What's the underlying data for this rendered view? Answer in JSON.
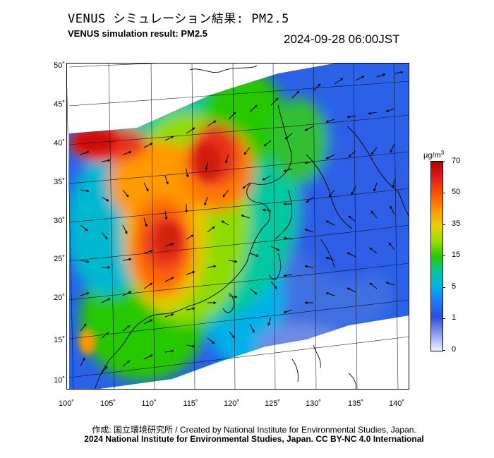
{
  "header": {
    "title_jp": "VENUS シミュレーション結果: PM2.5",
    "title_en": "VENUS simulation result: PM2.5",
    "timestamp": "2024-09-28 06:00JST"
  },
  "map": {
    "lat_ticks": [
      "50˚",
      "45˚",
      "40˚",
      "35˚",
      "30˚",
      "25˚",
      "20˚",
      "15˚",
      "10˚"
    ],
    "lon_ticks": [
      "100˚",
      "105˚",
      "110˚",
      "115˚",
      "120˚",
      "125˚",
      "130˚",
      "135˚",
      "140˚"
    ],
    "lon_range": [
      100,
      142
    ],
    "lat_range": [
      9,
      51
    ],
    "colors": {
      "background": "#ffffff",
      "coastline": "#000000",
      "wind_arrow": "#000000"
    }
  },
  "colorbar": {
    "unit": "μg/m",
    "unit_sup": "3",
    "labels": [
      "70",
      "50",
      "35",
      "15",
      "5",
      "1",
      "0"
    ],
    "stops": [
      "#b30000",
      "#ff5a00",
      "#ff9a00",
      "#9adf00",
      "#28c800",
      "#00b4e6",
      "#1e78ff",
      "#7e94ea",
      "#eef1fb"
    ]
  },
  "footer": {
    "line1": "作成: 国立環境研究所 / Created by National Institute for Environmental Studies, Japan.",
    "line2": "2024 National Institute for Environmental Studies, Japan. CC BY-NC 4.0 International"
  }
}
